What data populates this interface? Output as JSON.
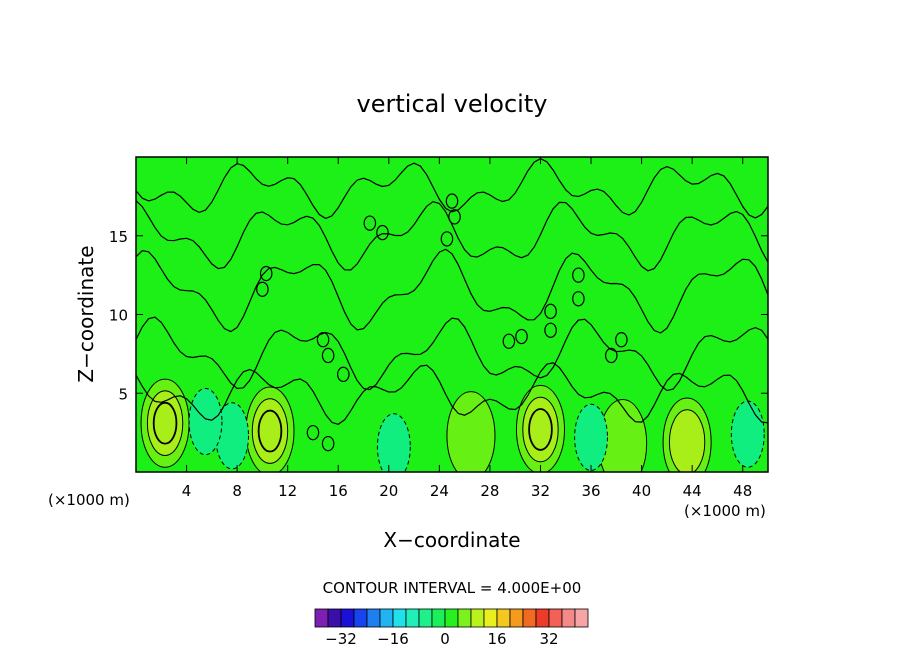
{
  "chart_data": {
    "type": "heatmap",
    "title": "vertical velocity",
    "xlabel": "X−coordinate",
    "ylabel": "Z−coordinate",
    "x_units_left": "(×1000 m)",
    "x_units_right": "(×1000 m)",
    "xlim": [
      0,
      50
    ],
    "ylim": [
      0,
      20
    ],
    "x_ticks": [
      4,
      8,
      12,
      16,
      20,
      24,
      28,
      32,
      36,
      40,
      44,
      48
    ],
    "x_tick_labels": [
      "4",
      "8",
      "12",
      "16",
      "20",
      "24",
      "28",
      "32",
      "36",
      "40",
      "44",
      "48"
    ],
    "y_ticks": [
      5,
      10,
      15
    ],
    "y_tick_labels": [
      "5",
      "10",
      "15"
    ],
    "contour_interval_label": "CONTOUR INTERVAL = 4.000E+00",
    "colorbar": {
      "colors": [
        "#7d1fb3",
        "#3a0fa8",
        "#1a10d8",
        "#1844ee",
        "#1f7ef0",
        "#22b4f2",
        "#20e0ea",
        "#20f0b8",
        "#1ef08a",
        "#1af05c",
        "#28ef1e",
        "#7af21e",
        "#baf21e",
        "#eaf01e",
        "#f4c81e",
        "#f49a1e",
        "#f06a22",
        "#ee3a28",
        "#f26058",
        "#f48a88",
        "#f6a4a4"
      ],
      "tick_values": [
        -32,
        -16,
        0,
        16,
        32
      ],
      "tick_labels": [
        "−32",
        "−16",
        "0",
        "16",
        "32"
      ]
    },
    "field_colors": {
      "background": "#1df016",
      "positive_1": "#66f014",
      "positive_2": "#a8ee18",
      "negative_1": "#10ee80",
      "negative_2": "#1ee070"
    },
    "updraft_cores": [
      {
        "x": 2.3,
        "z": 3.1,
        "level": 3
      },
      {
        "x": 10.6,
        "z": 2.6,
        "level": 3
      },
      {
        "x": 32.0,
        "z": 2.7,
        "level": 3
      },
      {
        "x": 38.5,
        "z": 1.8,
        "level": 1
      },
      {
        "x": 43.6,
        "z": 1.9,
        "level": 2
      },
      {
        "x": 26.5,
        "z": 2.3,
        "level": 1
      }
    ],
    "downdraft_cores": [
      {
        "x": 7.6,
        "z": 2.3,
        "level": 1
      },
      {
        "x": 36.0,
        "z": 2.2,
        "level": 1
      },
      {
        "x": 48.4,
        "z": 2.4,
        "level": 1
      },
      {
        "x": 5.5,
        "z": 3.2,
        "level": 1
      },
      {
        "x": 20.4,
        "z": 1.6,
        "level": 1
      }
    ]
  }
}
